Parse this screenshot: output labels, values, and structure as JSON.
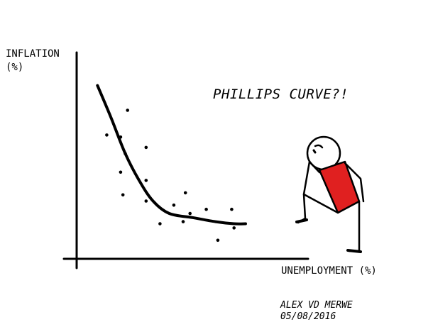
{
  "chart_data": {
    "type": "scatter",
    "title": "PHILLIPS CURVE?!",
    "xlabel": "UNEMPLOYMENT (%)",
    "ylabel_line1": "INFLATION",
    "ylabel_line2": "(%)",
    "xlim": [
      0,
      100
    ],
    "ylim": [
      0,
      100
    ],
    "grid": false,
    "points": [
      {
        "x": 22,
        "y": 72
      },
      {
        "x": 13,
        "y": 60
      },
      {
        "x": 19,
        "y": 59
      },
      {
        "x": 21,
        "y": 51
      },
      {
        "x": 30,
        "y": 54
      },
      {
        "x": 19,
        "y": 42
      },
      {
        "x": 30,
        "y": 38
      },
      {
        "x": 20,
        "y": 31
      },
      {
        "x": 30,
        "y": 28
      },
      {
        "x": 36,
        "y": 17
      },
      {
        "x": 42,
        "y": 26
      },
      {
        "x": 47,
        "y": 32
      },
      {
        "x": 46,
        "y": 18
      },
      {
        "x": 49,
        "y": 22
      },
      {
        "x": 56,
        "y": 24
      },
      {
        "x": 61,
        "y": 9
      },
      {
        "x": 67,
        "y": 24
      },
      {
        "x": 68,
        "y": 15
      }
    ],
    "curve": [
      {
        "x": 9,
        "y": 84
      },
      {
        "x": 15,
        "y": 68
      },
      {
        "x": 21,
        "y": 51
      },
      {
        "x": 27,
        "y": 38
      },
      {
        "x": 33,
        "y": 28
      },
      {
        "x": 40,
        "y": 22
      },
      {
        "x": 50,
        "y": 20
      },
      {
        "x": 60,
        "y": 18
      },
      {
        "x": 68,
        "y": 17
      },
      {
        "x": 73,
        "y": 17
      }
    ]
  },
  "credit": {
    "author": "ALEX VD MERWE",
    "date": "05/08/2016"
  },
  "colors": {
    "ink": "#000000",
    "shirt": "#e02020",
    "background": "#ffffff"
  }
}
